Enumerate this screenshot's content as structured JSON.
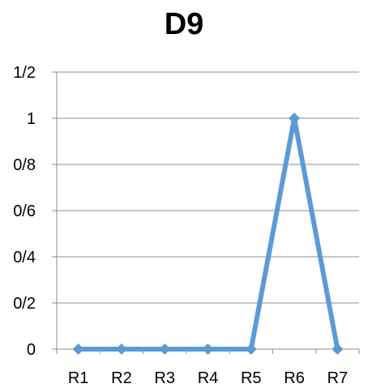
{
  "chart_data": {
    "type": "line",
    "title": "D9",
    "categories": [
      "R1",
      "R2",
      "R3",
      "R4",
      "R5",
      "R6",
      "R7"
    ],
    "series": [
      {
        "values": [
          0,
          0,
          0,
          0,
          0,
          1,
          0
        ],
        "color": "#5b9bd5"
      }
    ],
    "ylim": [
      0,
      1.2
    ],
    "y_ticks": [
      {
        "value": 0,
        "label": "0"
      },
      {
        "value": 0.2,
        "label": "0/2"
      },
      {
        "value": 0.4,
        "label": "0/4"
      },
      {
        "value": 0.6,
        "label": "0/6"
      },
      {
        "value": 0.8,
        "label": "0/8"
      },
      {
        "value": 1.0,
        "label": "1"
      },
      {
        "value": 1.2,
        "label": "1/2"
      }
    ],
    "grid": true,
    "legend": "none",
    "marker": "diamond"
  }
}
